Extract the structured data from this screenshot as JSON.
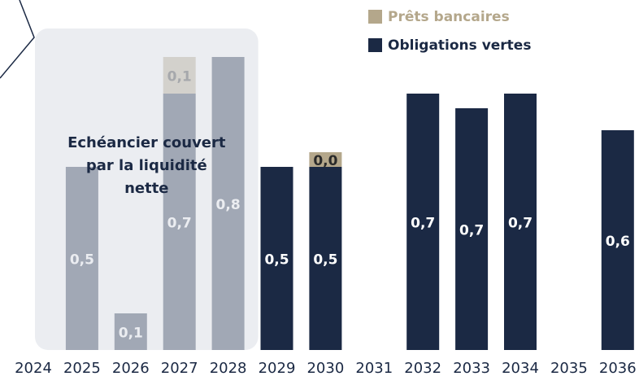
{
  "chart_data": {
    "type": "stacked-bar",
    "categories": [
      "2024",
      "2025",
      "2026",
      "2027",
      "2028",
      "2029",
      "2030",
      "2031",
      "2032",
      "2033",
      "2034",
      "2035",
      "2036"
    ],
    "series": [
      {
        "name": "Obligations vertes",
        "color": "#1b2944",
        "values": [
          null,
          0.5,
          0.1,
          0.7,
          0.8,
          0.5,
          0.5,
          null,
          0.7,
          0.66,
          0.7,
          null,
          0.6
        ],
        "value_labels": [
          null,
          "0,5",
          "0,1",
          "0,7",
          "0,8",
          "0,5",
          "0,5",
          null,
          "0,7",
          "0,7",
          "0,7",
          null,
          "0,6"
        ],
        "label_color": "#ffffff"
      },
      {
        "name": "Prêts bancaires",
        "color": "#b4a78b",
        "values": [
          null,
          null,
          null,
          0.1,
          null,
          null,
          0.04,
          null,
          null,
          null,
          null,
          null,
          null
        ],
        "value_labels": [
          null,
          null,
          null,
          "0,1",
          null,
          null,
          "0,0",
          null,
          null,
          null,
          null,
          null,
          null
        ],
        "label_color": "#2a2a2a"
      }
    ],
    "ylim": [
      0,
      0.9
    ],
    "highlight": {
      "label": [
        "Echéancier couvert",
        "par la liquidité",
        "nette"
      ],
      "categories": [
        "2024",
        "2028"
      ],
      "color": "rgba(226,229,234,0.68)"
    }
  }
}
